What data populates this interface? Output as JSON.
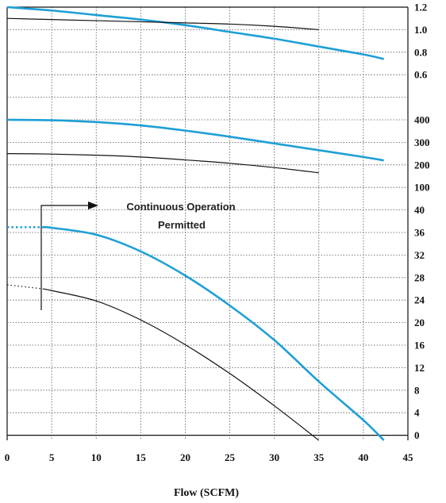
{
  "chart_data": {
    "type": "line",
    "xlabel": "Flow (SCFM)",
    "xlim": [
      0,
      45
    ],
    "x_ticks": [
      "0",
      "5",
      "10",
      "15",
      "20",
      "25",
      "30",
      "35",
      "40",
      "45"
    ],
    "y_tick_labels": [
      "1.2",
      "1.0",
      "0.8",
      "0.6",
      "",
      "400",
      "300",
      "200",
      "100",
      "40",
      "36",
      "32",
      "28",
      "24",
      "20",
      "16",
      "12",
      "8",
      "4",
      "0"
    ],
    "grid": true,
    "annotation": {
      "lines": [
        "Continuous Operation",
        "Permitted"
      ]
    },
    "colors": {
      "blue": "#1e9fd6",
      "black": "#111111",
      "grid": "#555555"
    },
    "panels": [
      {
        "name": "top",
        "ylim": [
          0.4,
          1.2
        ],
        "series": [
          {
            "color": "blue",
            "x": [
              0,
              5,
              10,
              15,
              20,
              25,
              30,
              35,
              40,
              42.3
            ],
            "y": [
              1.2,
              1.17,
              1.13,
              1.09,
              1.04,
              0.98,
              0.92,
              0.85,
              0.78,
              0.74
            ]
          },
          {
            "color": "black",
            "x": [
              0,
              5,
              10,
              15,
              20,
              25,
              30,
              35
            ],
            "y": [
              1.1,
              1.09,
              1.08,
              1.07,
              1.06,
              1.05,
              1.03,
              1.0
            ]
          }
        ]
      },
      {
        "name": "middle",
        "ylim": [
          0,
          500
        ],
        "series": [
          {
            "color": "blue",
            "x": [
              0,
              5,
              10,
              15,
              20,
              25,
              30,
              35,
              40,
              42.3
            ],
            "y": [
              400,
              398,
              390,
              375,
              352,
              325,
              295,
              265,
              235,
              220
            ]
          },
          {
            "color": "black",
            "x": [
              0,
              5,
              10,
              15,
              20,
              25,
              30,
              35
            ],
            "y": [
              250,
              248,
              243,
              235,
              222,
              207,
              188,
              165
            ]
          }
        ]
      },
      {
        "name": "bottom",
        "ylim": [
          0,
          40
        ],
        "series": [
          {
            "color": "blue",
            "dotted_until": 4,
            "x": [
              0,
              4,
              5,
              10,
              15,
              20,
              25,
              30,
              35,
              40,
              42.3
            ],
            "y": [
              37,
              37,
              36.9,
              35.7,
              32.8,
              28.6,
              23.4,
              17.4,
              10.2,
              3.5,
              0
            ]
          },
          {
            "color": "black",
            "dotted_until": 4,
            "x": [
              0,
              4,
              5,
              10,
              15,
              20,
              25,
              30,
              35
            ],
            "y": [
              27,
              26.3,
              26,
              24.2,
              20.9,
              16.6,
              11.6,
              6.0,
              0
            ]
          }
        ]
      }
    ]
  }
}
